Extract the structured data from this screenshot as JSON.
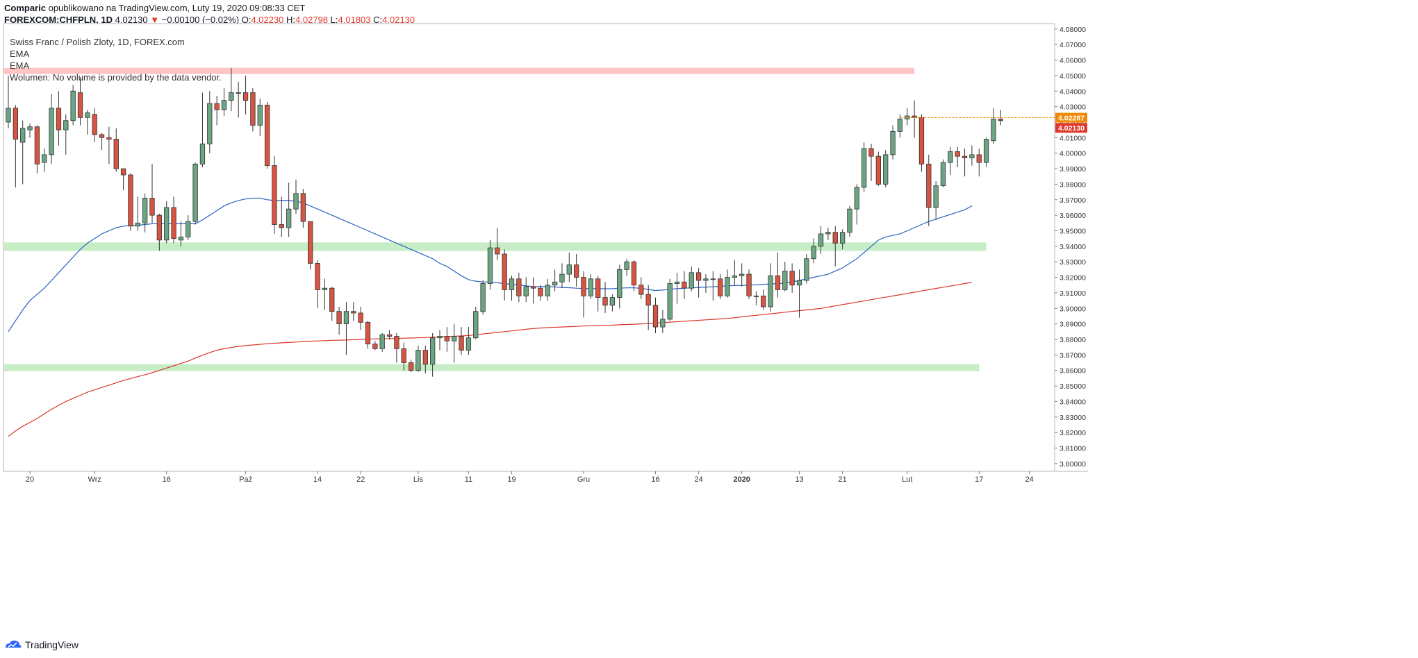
{
  "header": {
    "author": "Comparic",
    "published_text": "opublikowano na TradingView.com, Luty 19, 2020 09:08:33 CET",
    "symbol": "FOREXCOM:CHFPLN, 1D",
    "last": "4.02130",
    "change_arrow": "▼",
    "change": "−0.00100 (−0.02%)",
    "o_label": "O:",
    "o_value": "4.02230",
    "h_label": "H:",
    "h_value": "4.02798",
    "l_label": "L:",
    "l_value": "4.01803",
    "c_label": "C:",
    "c_value": "4.02130"
  },
  "legend": {
    "title": "Swiss Franc / Polish Zloty, 1D, FOREX.com",
    "ema1": "EMA",
    "ema2": "EMA",
    "volume": "Wolumen: No volume is provided by the data vendor."
  },
  "footer": {
    "brand": "TradingView"
  },
  "colors": {
    "up": "#6ba583",
    "down": "#d75442",
    "wick": "#333333",
    "ema_fast": "#2962c4",
    "ema_slow": "#d9372b",
    "resistance_zone": "#ffc4c4",
    "support_zone": "#c6edc6",
    "last_price_label": "#f08a05",
    "close_label": "#e0392b"
  },
  "chart_data": {
    "type": "candlestick",
    "y_range": [
      3.795,
      4.0835
    ],
    "y_ticks": [
      "4.08000",
      "4.07000",
      "4.06000",
      "4.05000",
      "4.04000",
      "4.03000",
      "4.02000",
      "4.01000",
      "4.00000",
      "3.99000",
      "3.98000",
      "3.97000",
      "3.96000",
      "3.95000",
      "3.94000",
      "3.93000",
      "3.92000",
      "3.91000",
      "3.90000",
      "3.89000",
      "3.88000",
      "3.87000",
      "3.86000",
      "3.85000",
      "3.84000",
      "3.83000",
      "3.82000",
      "3.81000",
      "3.80000"
    ],
    "x_ticks": [
      {
        "label": "20",
        "bar": 3
      },
      {
        "label": "Wrz",
        "bar": 12
      },
      {
        "label": "16",
        "bar": 22
      },
      {
        "label": "Paź",
        "bar": 33
      },
      {
        "label": "14",
        "bar": 43
      },
      {
        "label": "22",
        "bar": 49
      },
      {
        "label": "Lis",
        "bar": 57
      },
      {
        "label": "11",
        "bar": 64
      },
      {
        "label": "19",
        "bar": 70
      },
      {
        "label": "Gru",
        "bar": 80
      },
      {
        "label": "16",
        "bar": 90
      },
      {
        "label": "24",
        "bar": 96
      },
      {
        "label": "2020",
        "bar": 102
      },
      {
        "label": "13",
        "bar": 110
      },
      {
        "label": "21",
        "bar": 116
      },
      {
        "label": "Lut",
        "bar": 125
      },
      {
        "label": "17",
        "bar": 135
      },
      {
        "label": "24",
        "bar": 142
      }
    ],
    "candles": [
      [
        4.02,
        4.029,
        4.05,
        4.016
      ],
      [
        4.029,
        4.009,
        4.031,
        3.978
      ],
      [
        4.007,
        4.016,
        4.021,
        3.98
      ],
      [
        4.015,
        4.017,
        4.019,
        4.01
      ],
      [
        4.017,
        3.993,
        4.018,
        3.987
      ],
      [
        3.994,
        3.999,
        4.003,
        3.988
      ],
      [
        3.999,
        4.029,
        4.038,
        3.993
      ],
      [
        4.029,
        4.015,
        4.04,
        4.005
      ],
      [
        4.015,
        4.021,
        4.025,
        3.999
      ],
      [
        4.021,
        4.04,
        4.044,
        4.018
      ],
      [
        4.039,
        4.023,
        4.049,
        4.018
      ],
      [
        4.023,
        4.026,
        4.028,
        4.012
      ],
      [
        4.025,
        4.012,
        4.029,
        4.007
      ],
      [
        4.012,
        4.01,
        4.013,
        4.002
      ],
      [
        4.01,
        4.009,
        4.017,
        3.993
      ],
      [
        4.009,
        3.99,
        4.016,
        3.988
      ],
      [
        3.99,
        3.986,
        3.99,
        3.976
      ],
      [
        3.986,
        3.953,
        3.987,
        3.95
      ],
      [
        3.953,
        3.955,
        3.972,
        3.95
      ],
      [
        3.955,
        3.971,
        3.974,
        3.949
      ],
      [
        3.971,
        3.96,
        3.993,
        3.955
      ],
      [
        3.96,
        3.944,
        3.961,
        3.937
      ],
      [
        3.944,
        3.965,
        3.969,
        3.942
      ],
      [
        3.965,
        3.945,
        3.972,
        3.942
      ],
      [
        3.944,
        3.946,
        3.956,
        3.94
      ],
      [
        3.946,
        3.956,
        3.96,
        3.944
      ],
      [
        3.956,
        3.993,
        3.994,
        3.954
      ],
      [
        3.993,
        4.006,
        4.039,
        3.991
      ],
      [
        4.006,
        4.032,
        4.04,
        4.0
      ],
      [
        4.032,
        4.028,
        4.037,
        4.018
      ],
      [
        4.028,
        4.034,
        4.042,
        4.024
      ],
      [
        4.034,
        4.039,
        4.055,
        4.027
      ],
      [
        4.039,
        4.039,
        4.046,
        4.023
      ],
      [
        4.039,
        4.034,
        4.05,
        4.025
      ],
      [
        4.039,
        4.018,
        4.042,
        4.014
      ],
      [
        4.018,
        4.031,
        4.035,
        4.011
      ],
      [
        4.031,
        3.992,
        4.033,
        3.99
      ],
      [
        3.992,
        3.954,
        3.998,
        3.948
      ],
      [
        3.954,
        3.952,
        3.972,
        3.946
      ],
      [
        3.952,
        3.964,
        3.981,
        3.946
      ],
      [
        3.964,
        3.974,
        3.983,
        3.961
      ],
      [
        3.974,
        3.956,
        3.977,
        3.952
      ],
      [
        3.956,
        3.929,
        3.956,
        3.925
      ],
      [
        3.929,
        3.912,
        3.931,
        3.9
      ],
      [
        3.912,
        3.913,
        3.919,
        3.899
      ],
      [
        3.913,
        3.898,
        3.914,
        3.892
      ],
      [
        3.898,
        3.89,
        3.901,
        3.883
      ],
      [
        3.89,
        3.898,
        3.904,
        3.87
      ],
      [
        3.898,
        3.897,
        3.904,
        3.892
      ],
      [
        3.897,
        3.891,
        3.901,
        3.886
      ],
      [
        3.891,
        3.877,
        3.892,
        3.874
      ],
      [
        3.877,
        3.874,
        3.879,
        3.873
      ],
      [
        3.874,
        3.883,
        3.884,
        3.872
      ],
      [
        3.883,
        3.882,
        3.886,
        3.88
      ],
      [
        3.882,
        3.874,
        3.884,
        3.865
      ],
      [
        3.874,
        3.865,
        3.878,
        3.86
      ],
      [
        3.865,
        3.86,
        3.867,
        3.859
      ],
      [
        3.86,
        3.873,
        3.876,
        3.859
      ],
      [
        3.873,
        3.864,
        3.876,
        3.858
      ],
      [
        3.864,
        3.881,
        3.884,
        3.856
      ],
      [
        3.881,
        3.882,
        3.886,
        3.873
      ],
      [
        3.882,
        3.879,
        3.888,
        3.872
      ],
      [
        3.879,
        3.882,
        3.89,
        3.865
      ],
      [
        3.882,
        3.873,
        3.888,
        3.87
      ],
      [
        3.873,
        3.881,
        3.888,
        3.87
      ],
      [
        3.881,
        3.898,
        3.901,
        3.88
      ],
      [
        3.898,
        3.916,
        3.918,
        3.896
      ],
      [
        3.916,
        3.939,
        3.944,
        3.912
      ],
      [
        3.939,
        3.935,
        3.952,
        3.931
      ],
      [
        3.935,
        3.912,
        3.938,
        3.905
      ],
      [
        3.912,
        3.919,
        3.921,
        3.905
      ],
      [
        3.919,
        3.908,
        3.923,
        3.904
      ],
      [
        3.908,
        3.914,
        3.92,
        3.904
      ],
      [
        3.914,
        3.913,
        3.92,
        3.903
      ],
      [
        3.913,
        3.908,
        3.915,
        3.905
      ],
      [
        3.908,
        3.915,
        3.919,
        3.905
      ],
      [
        3.915,
        3.917,
        3.925,
        3.911
      ],
      [
        3.917,
        3.922,
        3.929,
        3.913
      ],
      [
        3.922,
        3.928,
        3.936,
        3.917
      ],
      [
        3.928,
        3.92,
        3.935,
        3.914
      ],
      [
        3.92,
        3.908,
        3.924,
        3.894
      ],
      [
        3.908,
        3.919,
        3.922,
        3.906
      ],
      [
        3.919,
        3.907,
        3.921,
        3.898
      ],
      [
        3.907,
        3.902,
        3.917,
        3.897
      ],
      [
        3.902,
        3.907,
        3.909,
        3.898
      ],
      [
        3.907,
        3.925,
        3.928,
        3.9
      ],
      [
        3.925,
        3.93,
        3.932,
        3.921
      ],
      [
        3.93,
        3.915,
        3.931,
        3.911
      ],
      [
        3.915,
        3.909,
        3.92,
        3.906
      ],
      [
        3.909,
        3.902,
        3.915,
        3.886
      ],
      [
        3.902,
        3.888,
        3.907,
        3.884
      ],
      [
        3.888,
        3.893,
        3.899,
        3.884
      ],
      [
        3.893,
        3.916,
        3.919,
        3.892
      ],
      [
        3.916,
        3.917,
        3.923,
        3.903
      ],
      [
        3.917,
        3.913,
        3.924,
        3.906
      ],
      [
        3.913,
        3.923,
        3.927,
        3.911
      ],
      [
        3.923,
        3.918,
        3.926,
        3.907
      ],
      [
        3.918,
        3.919,
        3.922,
        3.91
      ],
      [
        3.919,
        3.919,
        3.924,
        3.905
      ],
      [
        3.919,
        3.908,
        3.922,
        3.906
      ],
      [
        3.908,
        3.92,
        3.925,
        3.907
      ],
      [
        3.92,
        3.921,
        3.931,
        3.915
      ],
      [
        3.921,
        3.922,
        3.929,
        3.914
      ],
      [
        3.922,
        3.908,
        3.925,
        3.906
      ],
      [
        3.908,
        3.908,
        3.911,
        3.902
      ],
      [
        3.908,
        3.901,
        3.912,
        3.899
      ],
      [
        3.901,
        3.921,
        3.929,
        3.898
      ],
      [
        3.921,
        3.912,
        3.936,
        3.907
      ],
      [
        3.912,
        3.924,
        3.93,
        3.911
      ],
      [
        3.924,
        3.915,
        3.929,
        3.91
      ],
      [
        3.915,
        3.918,
        3.925,
        3.894
      ],
      [
        3.918,
        3.932,
        3.935,
        3.916
      ],
      [
        3.932,
        3.94,
        3.945,
        3.929
      ],
      [
        3.94,
        3.948,
        3.953,
        3.935
      ],
      [
        3.948,
        3.949,
        3.952,
        3.944
      ],
      [
        3.949,
        3.942,
        3.953,
        3.927
      ],
      [
        3.942,
        3.949,
        3.951,
        3.938
      ],
      [
        3.949,
        3.964,
        3.966,
        3.946
      ],
      [
        3.964,
        3.978,
        3.98,
        3.954
      ],
      [
        3.978,
        4.003,
        4.007,
        3.975
      ],
      [
        4.003,
        3.998,
        4.006,
        3.982
      ],
      [
        3.998,
        3.98,
        4.001,
        3.979
      ],
      [
        3.98,
        3.999,
        4.002,
        3.978
      ],
      [
        3.999,
        4.014,
        4.018,
        3.996
      ],
      [
        4.014,
        4.022,
        4.025,
        4.01
      ],
      [
        4.022,
        4.024,
        4.029,
        4.018
      ],
      [
        4.024,
        4.023,
        4.034,
        4.01
      ],
      [
        4.023,
        3.993,
        4.025,
        3.988
      ],
      [
        3.993,
        3.965,
        3.999,
        3.953
      ],
      [
        3.965,
        3.979,
        3.982,
        3.957
      ],
      [
        3.979,
        3.994,
        3.996,
        3.978
      ],
      [
        3.994,
        4.001,
        4.004,
        3.986
      ],
      [
        4.001,
        3.998,
        4.004,
        3.991
      ],
      [
        3.998,
        3.997,
        4.003,
        3.985
      ],
      [
        3.997,
        3.999,
        4.005,
        3.992
      ],
      [
        3.999,
        3.994,
        4.003,
        3.985
      ],
      [
        3.994,
        4.009,
        4.01,
        3.991
      ],
      [
        4.008,
        4.022,
        4.029,
        4.006
      ],
      [
        4.022,
        4.021,
        4.028,
        4.018
      ]
    ],
    "ema_fast": [
      3.885,
      3.892,
      3.899,
      3.905,
      3.909,
      3.913,
      3.918,
      3.923,
      3.928,
      3.933,
      3.938,
      3.942,
      3.945,
      3.948,
      3.95,
      3.952,
      3.953,
      3.9535,
      3.9535,
      3.954,
      3.9545,
      3.9545,
      3.9545,
      3.9545,
      3.9545,
      3.9545,
      3.9545,
      3.957,
      3.96,
      3.963,
      3.966,
      3.968,
      3.9695,
      3.9705,
      3.971,
      3.971,
      3.97,
      3.9695,
      3.9695,
      3.9695,
      3.969,
      3.968,
      3.966,
      3.964,
      3.962,
      3.96,
      3.958,
      3.956,
      3.954,
      3.952,
      3.95,
      3.948,
      3.946,
      3.944,
      3.942,
      3.94,
      3.938,
      3.936,
      3.934,
      3.932,
      3.929,
      3.927,
      3.924,
      3.921,
      3.9185,
      3.9175,
      3.917,
      3.917,
      3.9165,
      3.916,
      3.9155,
      3.915,
      3.9145,
      3.914,
      3.914,
      3.914,
      3.9138,
      3.9135,
      3.9133,
      3.913,
      3.9128,
      3.9127,
      3.9127,
      3.9126,
      3.9127,
      3.913,
      3.9132,
      3.9132,
      3.9129,
      3.9122,
      3.9115,
      3.9118,
      3.9123,
      3.9127,
      3.913,
      3.9132,
      3.9135,
      3.9137,
      3.9139,
      3.9142,
      3.9145,
      3.9147,
      3.9148,
      3.9149,
      3.9152,
      3.9155,
      3.9157,
      3.916,
      3.9162,
      3.917,
      3.918,
      3.919,
      3.92,
      3.921,
      3.922,
      3.924,
      3.926,
      3.929,
      3.932,
      3.936,
      3.94,
      3.944,
      3.946,
      3.947,
      3.948,
      3.95,
      3.952,
      3.954,
      3.956,
      3.9575,
      3.959,
      3.9605,
      3.962,
      3.9635,
      3.966
    ],
    "ema_slow": [
      3.8175,
      3.821,
      3.824,
      3.8265,
      3.829,
      3.832,
      3.835,
      3.8375,
      3.84,
      3.842,
      3.844,
      3.846,
      3.8475,
      3.849,
      3.8505,
      3.852,
      3.8535,
      3.8548,
      3.856,
      3.8572,
      3.8585,
      3.86,
      3.8615,
      3.863,
      3.8645,
      3.866,
      3.868,
      3.8698,
      3.8715,
      3.873,
      3.874,
      3.8748,
      3.8755,
      3.876,
      3.8764,
      3.8768,
      3.8772,
      3.8775,
      3.8778,
      3.878,
      3.8783,
      3.8786,
      3.8788,
      3.879,
      3.8792,
      3.8794,
      3.8795,
      3.8796,
      3.8798,
      3.88,
      3.8802,
      3.8803,
      3.8804,
      3.8805,
      3.8806,
      3.8808,
      3.8809,
      3.881,
      3.8812,
      3.8814,
      3.8816,
      3.8818,
      3.882,
      3.8822,
      3.8825,
      3.883,
      3.8835,
      3.884,
      3.8845,
      3.885,
      3.8855,
      3.886,
      3.8865,
      3.887,
      3.8873,
      3.8876,
      3.8878,
      3.888,
      3.8882,
      3.8884,
      3.8886,
      3.8888,
      3.8889,
      3.889,
      3.8892,
      3.8894,
      3.8896,
      3.8898,
      3.89,
      3.8902,
      3.8905,
      3.8908,
      3.8911,
      3.8914,
      3.8917,
      3.892,
      3.8923,
      3.8926,
      3.8929,
      3.8932,
      3.8935,
      3.894,
      3.8945,
      3.895,
      3.8955,
      3.896,
      3.8965,
      3.897,
      3.8975,
      3.898,
      3.8985,
      3.899,
      3.8995,
      3.9,
      3.9008,
      3.9016,
      3.9024,
      3.9032,
      3.904,
      3.9048,
      3.9056,
      3.9064,
      3.9072,
      3.908,
      3.9088,
      3.9096,
      3.9104,
      3.9112,
      3.912,
      3.9128,
      3.9136,
      3.9144,
      3.9152,
      3.916,
      3.9168
    ],
    "zones": [
      {
        "type": "resistance",
        "from": 4.051,
        "to": 4.055,
        "start_bar": 0,
        "end_bar": 126
      },
      {
        "type": "support",
        "from": 3.937,
        "to": 3.9425,
        "start_bar": 0,
        "end_bar": 136
      },
      {
        "type": "support",
        "from": 3.8595,
        "to": 3.864,
        "start_bar": 0,
        "end_bar": 135
      }
    ],
    "last_price_line": 4.02287,
    "last_price_label": "4.02287",
    "close_label": "4.02130"
  }
}
